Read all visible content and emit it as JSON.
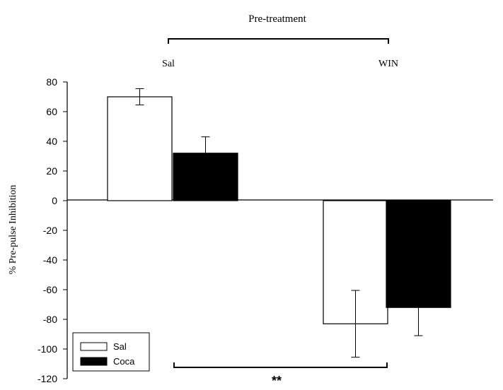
{
  "chart_data": {
    "type": "bar",
    "top_label": "Pre-treatment",
    "ylabel": "% Pre-pulse Inhibition",
    "ylim": [
      -120,
      80
    ],
    "yticks": [
      80,
      60,
      40,
      20,
      0,
      -20,
      -40,
      -60,
      -80,
      -100,
      -120
    ],
    "groups": [
      "Sal",
      "WIN"
    ],
    "series": [
      {
        "name": "Sal",
        "fill": "#ffffff",
        "values": [
          70,
          -83
        ],
        "errors": [
          5.5,
          22.5
        ]
      },
      {
        "name": "Coca",
        "fill": "#000000",
        "values": [
          32,
          -72
        ],
        "errors": [
          11,
          19
        ]
      }
    ],
    "significance": "**",
    "legend": {
      "position": "bottom-left",
      "entries": [
        "Sal",
        "Coca"
      ]
    }
  }
}
